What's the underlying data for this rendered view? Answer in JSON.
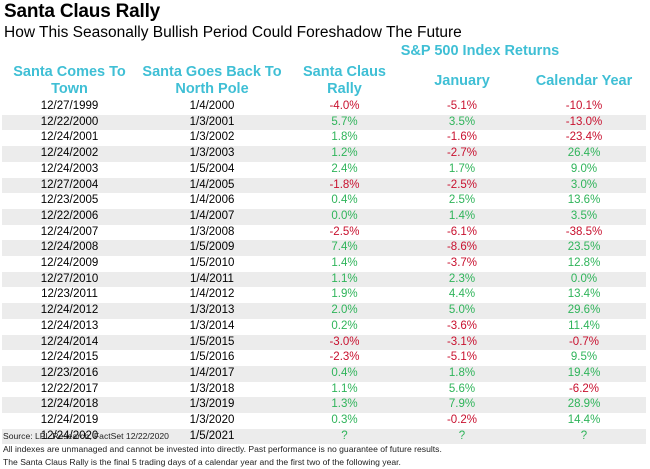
{
  "title": "Santa Claus Rally",
  "subtitle": "How This Seasonally Bullish Period Could Foreshadow The Future",
  "group_header": "S&P 500 Index Returns",
  "columns": {
    "c0": {
      "line1": "Santa Comes To",
      "line2": "Town"
    },
    "c1": {
      "line1": "Santa Goes Back To",
      "line2": "North Pole"
    },
    "c2": {
      "line1": "Santa Claus",
      "line2": "Rally"
    },
    "c3": {
      "line1": "January",
      "line2": ""
    },
    "c4": {
      "line1": "Calendar Year",
      "line2": ""
    }
  },
  "colors": {
    "header": "#3fbfd5",
    "positive": "#2fb45a",
    "negative": "#c8102e",
    "stripe": "#ececec"
  },
  "rows": [
    [
      "12/27/1999",
      "1/4/2000",
      "-4.0%",
      "-5.1%",
      "-10.1%"
    ],
    [
      "12/22/2000",
      "1/3/2001",
      "5.7%",
      "3.5%",
      "-13.0%"
    ],
    [
      "12/24/2001",
      "1/3/2002",
      "1.8%",
      "-1.6%",
      "-23.4%"
    ],
    [
      "12/24/2002",
      "1/3/2003",
      "1.2%",
      "-2.7%",
      "26.4%"
    ],
    [
      "12/24/2003",
      "1/5/2004",
      "2.4%",
      "1.7%",
      "9.0%"
    ],
    [
      "12/27/2004",
      "1/4/2005",
      "-1.8%",
      "-2.5%",
      "3.0%"
    ],
    [
      "12/23/2005",
      "1/4/2006",
      "0.4%",
      "2.5%",
      "13.6%"
    ],
    [
      "12/22/2006",
      "1/4/2007",
      "0.0%",
      "1.4%",
      "3.5%"
    ],
    [
      "12/24/2007",
      "1/3/2008",
      "-2.5%",
      "-6.1%",
      "-38.5%"
    ],
    [
      "12/24/2008",
      "1/5/2009",
      "7.4%",
      "-8.6%",
      "23.5%"
    ],
    [
      "12/24/2009",
      "1/5/2010",
      "1.4%",
      "-3.7%",
      "12.8%"
    ],
    [
      "12/27/2010",
      "1/4/2011",
      "1.1%",
      "2.3%",
      "0.0%"
    ],
    [
      "12/23/2011",
      "1/4/2012",
      "1.9%",
      "4.4%",
      "13.4%"
    ],
    [
      "12/24/2012",
      "1/3/2013",
      "2.0%",
      "5.0%",
      "29.6%"
    ],
    [
      "12/24/2013",
      "1/3/2014",
      "0.2%",
      "-3.6%",
      "11.4%"
    ],
    [
      "12/24/2014",
      "1/5/2015",
      "-3.0%",
      "-3.1%",
      "-0.7%"
    ],
    [
      "12/24/2015",
      "1/5/2016",
      "-2.3%",
      "-5.1%",
      "9.5%"
    ],
    [
      "12/23/2016",
      "1/4/2017",
      "0.4%",
      "1.8%",
      "19.4%"
    ],
    [
      "12/22/2017",
      "1/3/2018",
      "1.1%",
      "5.6%",
      "-6.2%"
    ],
    [
      "12/24/2018",
      "1/3/2019",
      "1.3%",
      "7.9%",
      "28.9%"
    ],
    [
      "12/24/2019",
      "1/3/2020",
      "0.3%",
      "-0.2%",
      "14.4%"
    ],
    [
      "12/24/2020",
      "1/5/2021",
      "?",
      "?",
      "?"
    ]
  ],
  "footnotes": {
    "source": "Source: LPL Research, FactSet 12/22/2020",
    "disclaimer": "All indexes are unmanaged and cannot be invested into directly. Past performance is no guarantee of future results.",
    "definition": "The Santa Claus Rally is the final 5 trading days of a calendar year and the first two of the following year."
  }
}
